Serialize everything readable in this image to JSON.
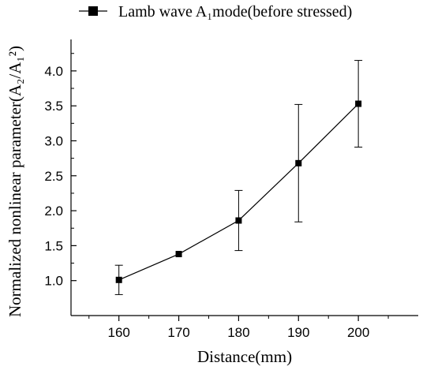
{
  "chart_data": {
    "type": "line",
    "x": [
      160,
      170,
      180,
      190,
      200
    ],
    "series": [
      {
        "name": "Lamb wave A₁mode(before stressed)",
        "values": [
          1.01,
          1.38,
          1.86,
          2.68,
          3.53
        ],
        "error": [
          0.21,
          0.0,
          0.43,
          0.84,
          0.62
        ],
        "marker": "square"
      }
    ],
    "xlabel": "Distance(mm)",
    "ylabel": "Normalized nonlinear parameter(A₂/A₁²)",
    "xlim": [
      152,
      210
    ],
    "ylim": [
      0.5,
      4.45
    ],
    "xticks": [
      "160",
      "170",
      "180",
      "190",
      "200"
    ],
    "yticks": [
      "1.0",
      "1.5",
      "2.0",
      "2.5",
      "3.0",
      "3.5",
      "4.0"
    ],
    "legend": "top",
    "grid": false,
    "colors": {
      "line": "#000000",
      "axis": "#000000"
    }
  }
}
